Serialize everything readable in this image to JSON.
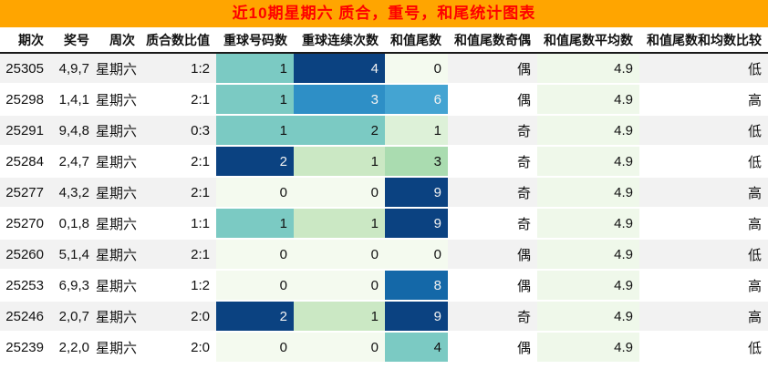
{
  "title_bar": {
    "title": "近10期星期六 质合，重号，和尾统计图表"
  },
  "colors": {
    "title_bg": "#FFA500",
    "title_fg": "#FE0000",
    "stripe_bg": "#F2F2F2",
    "avg_col_bg": "#EFF8EA",
    "header_border": "#1A1A1A",
    "table_bottom_border": "#C8C8C8",
    "heat_dark_text": "#1A1A1A",
    "heat_light_text": "#F2F2F2"
  },
  "chart_data": {
    "type": "table",
    "title": "近10期星期六 质合，重号，和尾统计图表",
    "columns": [
      "期次",
      "奖号",
      "周次",
      "质合数比值",
      "重球号码数",
      "重球连续次数",
      "和值尾数",
      "和值尾数奇偶",
      "和值尾数平均数",
      "和值尾数和均数比较"
    ],
    "rows": [
      [
        "25305",
        "4,9,7",
        "星期六",
        "1:2",
        "1",
        "4",
        "0",
        "偶",
        "4.9",
        "低"
      ],
      [
        "25298",
        "1,4,1",
        "星期六",
        "2:1",
        "1",
        "3",
        "6",
        "偶",
        "4.9",
        "高"
      ],
      [
        "25291",
        "9,4,8",
        "星期六",
        "0:3",
        "1",
        "2",
        "1",
        "奇",
        "4.9",
        "低"
      ],
      [
        "25284",
        "2,4,7",
        "星期六",
        "2:1",
        "2",
        "1",
        "3",
        "奇",
        "4.9",
        "低"
      ],
      [
        "25277",
        "4,3,2",
        "星期六",
        "2:1",
        "0",
        "0",
        "9",
        "奇",
        "4.9",
        "高"
      ],
      [
        "25270",
        "0,1,8",
        "星期六",
        "1:1",
        "1",
        "1",
        "9",
        "奇",
        "4.9",
        "高"
      ],
      [
        "25260",
        "5,1,4",
        "星期六",
        "2:1",
        "0",
        "0",
        "0",
        "偶",
        "4.9",
        "低"
      ],
      [
        "25253",
        "6,9,3",
        "星期六",
        "1:2",
        "0",
        "0",
        "8",
        "偶",
        "4.9",
        "高"
      ],
      [
        "25246",
        "2,0,7",
        "星期六",
        "2:0",
        "2",
        "1",
        "9",
        "奇",
        "4.9",
        "高"
      ],
      [
        "25239",
        "2,2,0",
        "星期六",
        "2:0",
        "0",
        "0",
        "4",
        "偶",
        "4.9",
        "低"
      ]
    ],
    "heatmap": {
      "column_indices": [
        4,
        5,
        6
      ],
      "bg": [
        [
          "#7BCAC3",
          "#0B4281",
          "#F4FAEF"
        ],
        [
          "#7BCAC3",
          "#2E8FC6",
          "#44A4D2"
        ],
        [
          "#7BCAC3",
          "#7BCAC3",
          "#DDF1D8"
        ],
        [
          "#0B4281",
          "#CBE8C4",
          "#AADCB0"
        ],
        [
          "#F4FAEF",
          "#F4FAEF",
          "#0B4281"
        ],
        [
          "#7BCAC3",
          "#CBE8C4",
          "#0B4281"
        ],
        [
          "#F4FAEF",
          "#F4FAEF",
          "#F4FAEF"
        ],
        [
          "#F4FAEF",
          "#F4FAEF",
          "#1468A8"
        ],
        [
          "#0B4281",
          "#CBE8C4",
          "#0B4281"
        ],
        [
          "#F4FAEF",
          "#F4FAEF",
          "#7BCAC3"
        ]
      ],
      "fg": [
        [
          "dark",
          "light",
          "dark"
        ],
        [
          "dark",
          "light",
          "light"
        ],
        [
          "dark",
          "dark",
          "dark"
        ],
        [
          "light",
          "dark",
          "dark"
        ],
        [
          "dark",
          "dark",
          "light"
        ],
        [
          "dark",
          "dark",
          "light"
        ],
        [
          "dark",
          "dark",
          "dark"
        ],
        [
          "dark",
          "dark",
          "light"
        ],
        [
          "light",
          "dark",
          "light"
        ],
        [
          "dark",
          "dark",
          "dark"
        ]
      ]
    },
    "layout": {
      "avg_column_index": 8,
      "striped_row_indices": [
        0,
        2,
        4,
        6,
        8
      ]
    }
  }
}
